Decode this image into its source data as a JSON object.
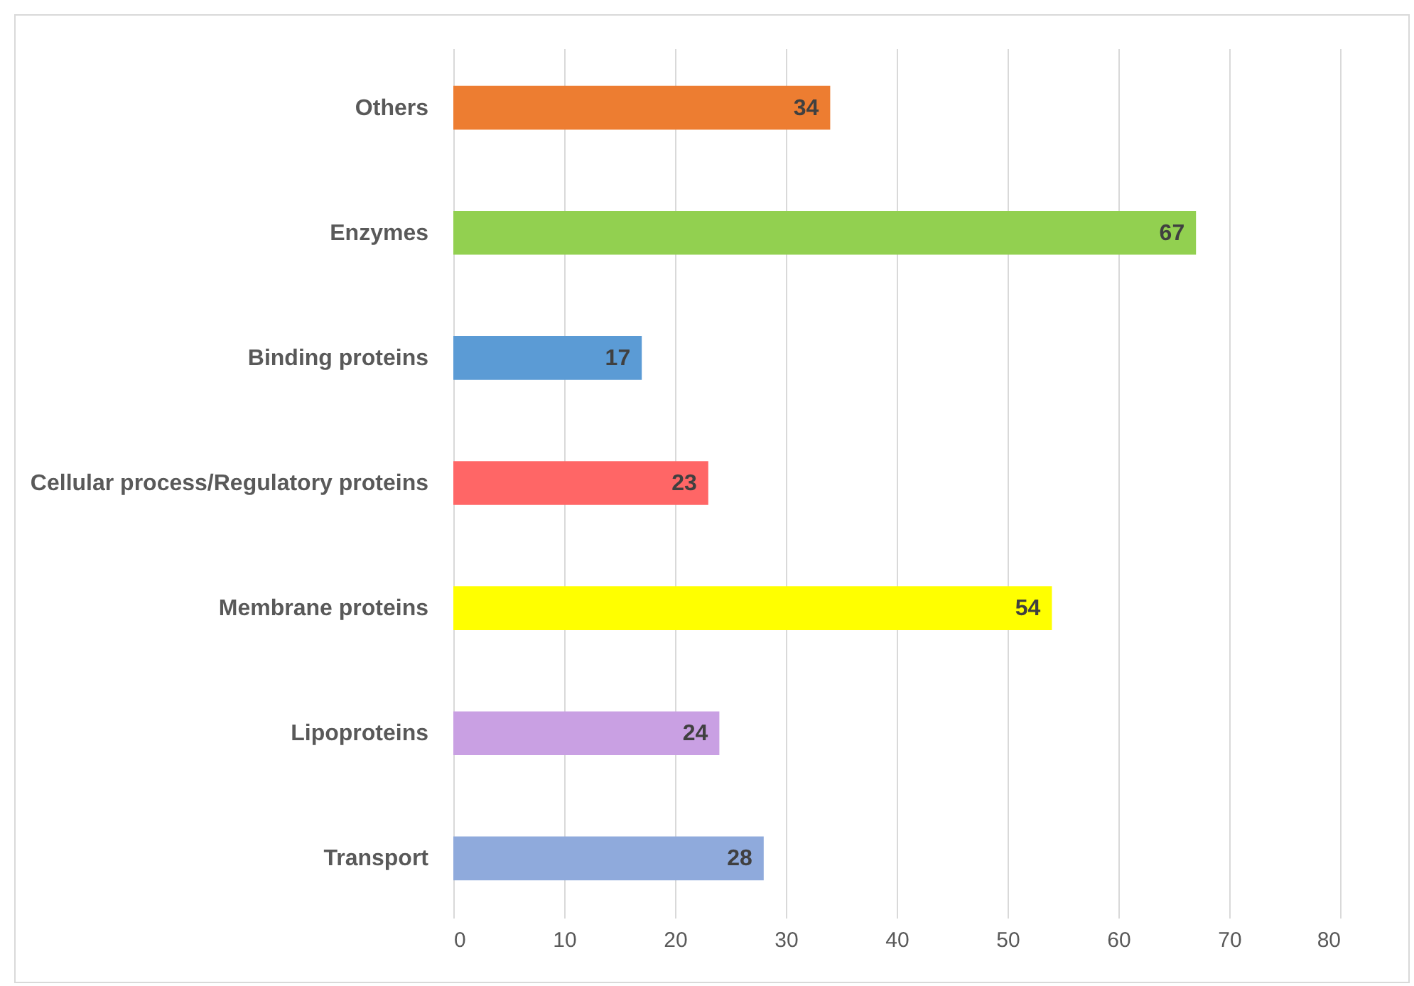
{
  "chart_data": {
    "type": "bar",
    "orientation": "horizontal",
    "categories": [
      "Others",
      "Enzymes",
      "Binding proteins",
      "Cellular process/Regulatory proteins",
      "Membrane proteins",
      "Lipoproteins",
      "Transport"
    ],
    "values": [
      34,
      67,
      17,
      23,
      54,
      24,
      28
    ],
    "colors": [
      "#ed7d31",
      "#92d050",
      "#5b9bd5",
      "#ff6666",
      "#ffff00",
      "#c9a0e3",
      "#8faadc"
    ],
    "xlim": [
      0,
      80
    ],
    "xticks": [
      0,
      10,
      20,
      30,
      40,
      50,
      60,
      70,
      80
    ],
    "grid": "x",
    "data_labels": true
  }
}
